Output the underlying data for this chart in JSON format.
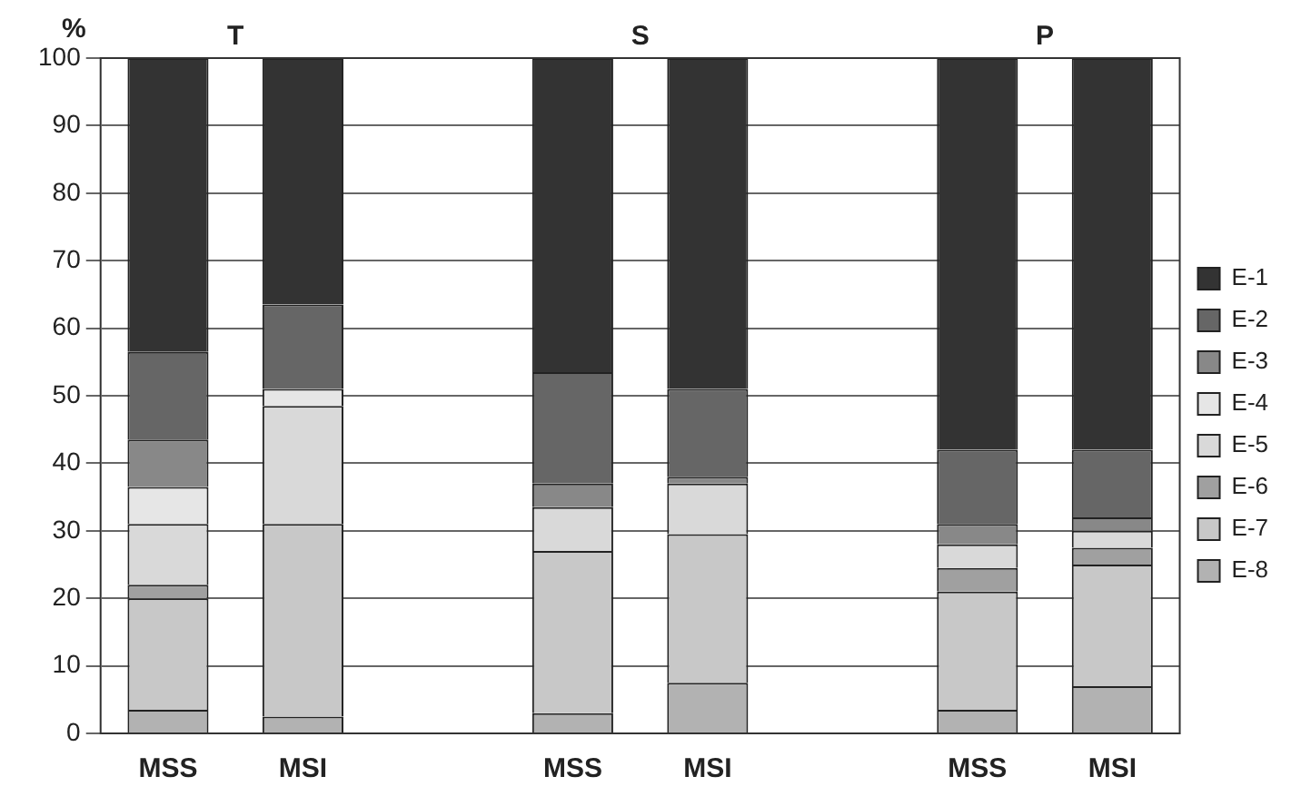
{
  "chart_data": {
    "type": "bar",
    "stacked": true,
    "ylabel": "%",
    "categories": [
      "MSS",
      "MSI",
      null,
      "MSS",
      "MSI",
      null,
      "MSS",
      "MSI"
    ],
    "annotations": [
      "T",
      "S",
      "P"
    ],
    "series": [
      {
        "name": "E-8",
        "color": "#b2b2b2",
        "values": [
          3.5,
          2.5,
          null,
          3,
          7.5,
          null,
          3.5,
          7
        ]
      },
      {
        "name": "E-7",
        "color": "#c8c8c8",
        "values": [
          16.5,
          28.5,
          null,
          24,
          22,
          null,
          17.5,
          18
        ]
      },
      {
        "name": "E-6",
        "color": "#a0a0a0",
        "values": [
          2,
          0,
          null,
          0,
          0,
          null,
          3.5,
          2.5
        ]
      },
      {
        "name": "E-5",
        "color": "#d9d9d9",
        "values": [
          9,
          17.5,
          null,
          6.5,
          7.5,
          null,
          3.5,
          2.5
        ]
      },
      {
        "name": "E-4",
        "color": "#e6e6e6",
        "values": [
          5.5,
          2.5,
          null,
          0,
          0,
          null,
          0,
          0
        ]
      },
      {
        "name": "E-3",
        "color": "#888888",
        "values": [
          7,
          0,
          null,
          3.5,
          1,
          null,
          3,
          2
        ]
      },
      {
        "name": "E-2",
        "color": "#666666",
        "values": [
          13,
          12.5,
          null,
          16.5,
          13,
          null,
          11,
          10
        ]
      },
      {
        "name": "E-1",
        "color": "#333333",
        "values": [
          43.5,
          36.5,
          null,
          46.5,
          49,
          null,
          58,
          58
        ]
      }
    ],
    "ylim": [
      0,
      100
    ],
    "yticks": [
      0,
      10,
      20,
      30,
      40,
      50,
      60,
      70,
      80,
      90,
      100
    ],
    "grid": "y",
    "legend": "right"
  }
}
